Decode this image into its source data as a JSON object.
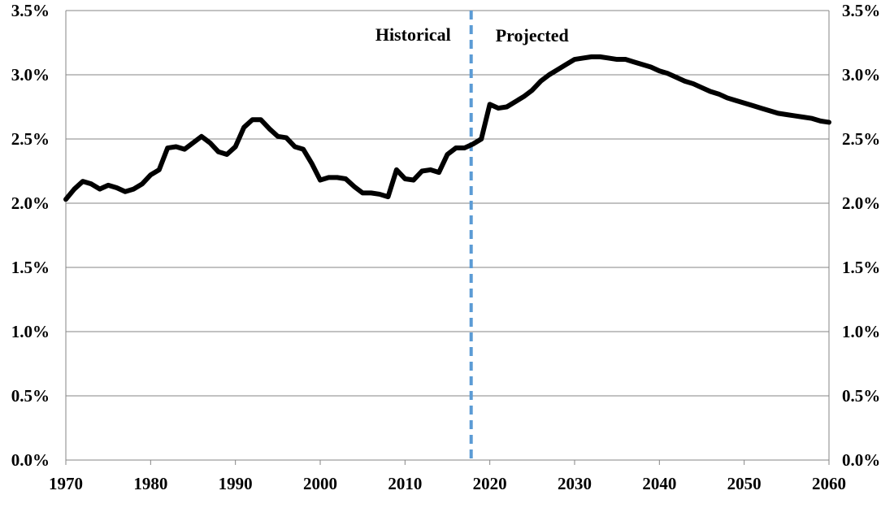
{
  "chart_data": {
    "type": "line",
    "title": "",
    "xlabel": "",
    "ylabel": "",
    "xlim": [
      1970,
      2060
    ],
    "ylim": [
      0,
      3.5
    ],
    "grid": true,
    "legend": "none",
    "x_ticks": [
      "1970",
      "1980",
      "1990",
      "2000",
      "2010",
      "2020",
      "2030",
      "2040",
      "2050",
      "2060"
    ],
    "y_ticks_left": [
      "0.0%",
      "0.5%",
      "1.0%",
      "1.5%",
      "2.0%",
      "2.5%",
      "3.0%",
      "3.5%"
    ],
    "y_ticks_right": [
      "0.0%",
      "0.5%",
      "1.0%",
      "1.5%",
      "2.0%",
      "2.5%",
      "3.0%",
      "3.5%"
    ],
    "divider": {
      "x": 2017.8,
      "style": "dashed",
      "color": "#5b9bd5"
    },
    "annotations": [
      {
        "id": "historical",
        "text": "Historical"
      },
      {
        "id": "projected",
        "text": "Projected"
      }
    ],
    "series": [
      {
        "color": "#000000",
        "x": [
          1970,
          1971,
          1972,
          1973,
          1974,
          1975,
          1976,
          1977,
          1978,
          1979,
          1980,
          1981,
          1982,
          1983,
          1984,
          1985,
          1986,
          1987,
          1988,
          1989,
          1990,
          1991,
          1992,
          1993,
          1994,
          1995,
          1996,
          1997,
          1998,
          1999,
          2000,
          2001,
          2002,
          2003,
          2004,
          2005,
          2006,
          2007,
          2008,
          2009,
          2010,
          2011,
          2012,
          2013,
          2014,
          2015,
          2016,
          2017,
          2018,
          2019,
          2020,
          2021,
          2022,
          2023,
          2024,
          2025,
          2026,
          2027,
          2028,
          2029,
          2030,
          2031,
          2032,
          2033,
          2034,
          2035,
          2036,
          2037,
          2038,
          2039,
          2040,
          2041,
          2042,
          2043,
          2044,
          2045,
          2046,
          2047,
          2048,
          2049,
          2050,
          2051,
          2052,
          2053,
          2054,
          2055,
          2056,
          2057,
          2058,
          2059,
          2060
        ],
        "values": [
          2.03,
          2.11,
          2.17,
          2.15,
          2.11,
          2.14,
          2.12,
          2.09,
          2.11,
          2.15,
          2.22,
          2.26,
          2.43,
          2.44,
          2.42,
          2.47,
          2.52,
          2.47,
          2.4,
          2.38,
          2.44,
          2.59,
          2.65,
          2.65,
          2.58,
          2.52,
          2.51,
          2.44,
          2.42,
          2.31,
          2.18,
          2.2,
          2.2,
          2.19,
          2.13,
          2.08,
          2.08,
          2.07,
          2.05,
          2.26,
          2.19,
          2.18,
          2.25,
          2.26,
          2.24,
          2.38,
          2.43,
          2.43,
          2.46,
          2.5,
          2.77,
          2.74,
          2.75,
          2.79,
          2.83,
          2.88,
          2.95,
          3.0,
          3.04,
          3.08,
          3.12,
          3.13,
          3.14,
          3.14,
          3.13,
          3.12,
          3.12,
          3.1,
          3.08,
          3.06,
          3.03,
          3.01,
          2.98,
          2.95,
          2.93,
          2.9,
          2.87,
          2.85,
          2.82,
          2.8,
          2.78,
          2.76,
          2.74,
          2.72,
          2.7,
          2.69,
          2.68,
          2.67,
          2.66,
          2.64,
          2.63
        ]
      }
    ]
  }
}
